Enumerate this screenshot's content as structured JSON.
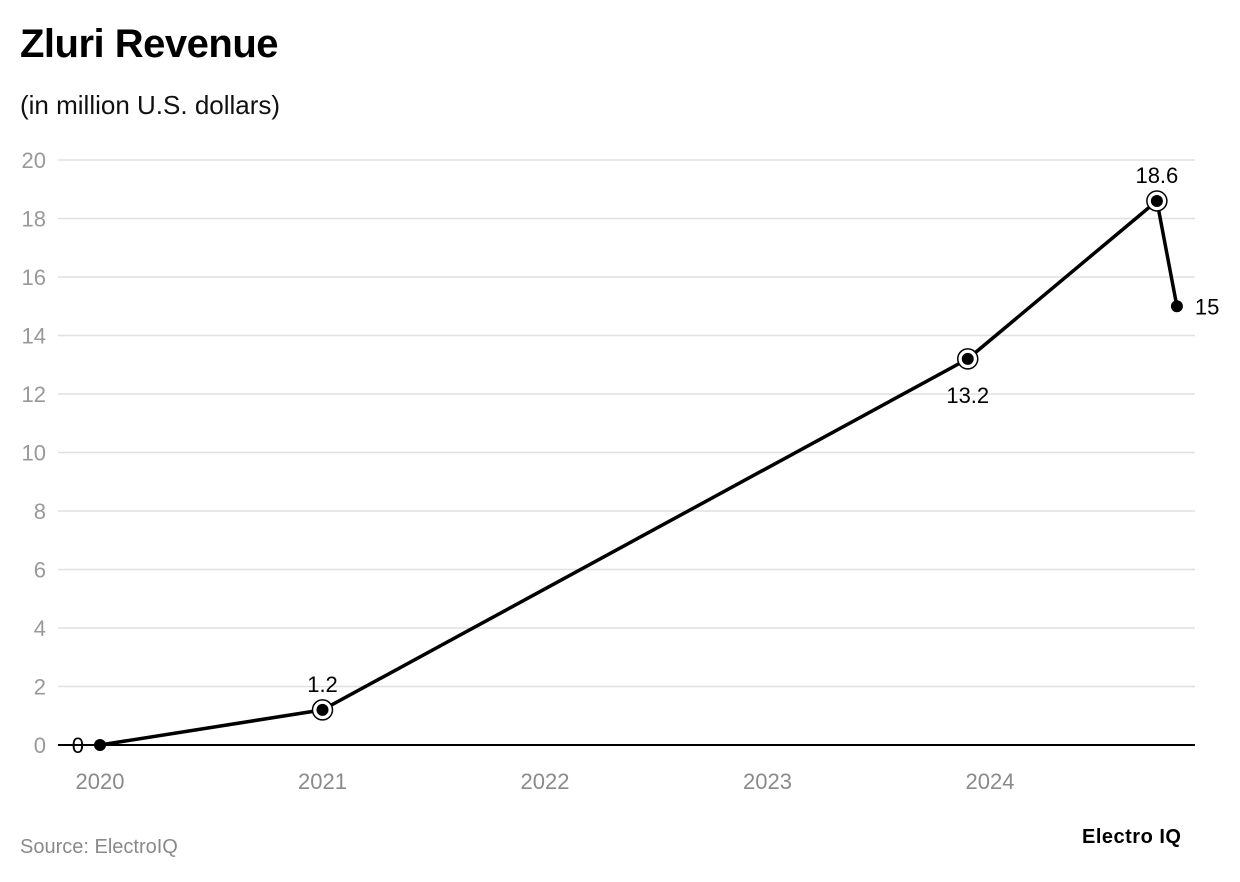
{
  "title": "Zluri Revenue",
  "subtitle": "(in million U.S. dollars)",
  "source": "Source: ElectroIQ",
  "brand": "Electro IQ",
  "chart_data": {
    "type": "line",
    "title": "Zluri Revenue",
    "subtitle": "(in million U.S. dollars)",
    "xlabel": "",
    "ylabel": "",
    "ylim": [
      0,
      20
    ],
    "y_ticks": [
      0,
      2,
      4,
      6,
      8,
      10,
      12,
      14,
      16,
      18,
      20
    ],
    "x_ticks": [
      "2020",
      "2021",
      "2022",
      "2023",
      "2024"
    ],
    "xlim": [
      2020,
      2025
    ],
    "grid": true,
    "series": [
      {
        "name": "Revenue",
        "points": [
          {
            "x": 2020.0,
            "y": 0,
            "label": "0",
            "label_pos": "left",
            "marker": "dot"
          },
          {
            "x": 2021.0,
            "y": 1.2,
            "label": "1.2",
            "label_pos": "above",
            "marker": "ring"
          },
          {
            "x": 2023.9,
            "y": 13.2,
            "label": "13.2",
            "label_pos": "below",
            "marker": "ring"
          },
          {
            "x": 2024.75,
            "y": 18.6,
            "label": "18.6",
            "label_pos": "above",
            "marker": "ring"
          },
          {
            "x": 2024.84,
            "y": 15,
            "label": "15",
            "label_pos": "right",
            "marker": "dot"
          }
        ]
      }
    ],
    "colors": {
      "line": "#000000",
      "grid": "#e0e0e0",
      "tick_text": "#999999",
      "axis": "#000000"
    }
  }
}
